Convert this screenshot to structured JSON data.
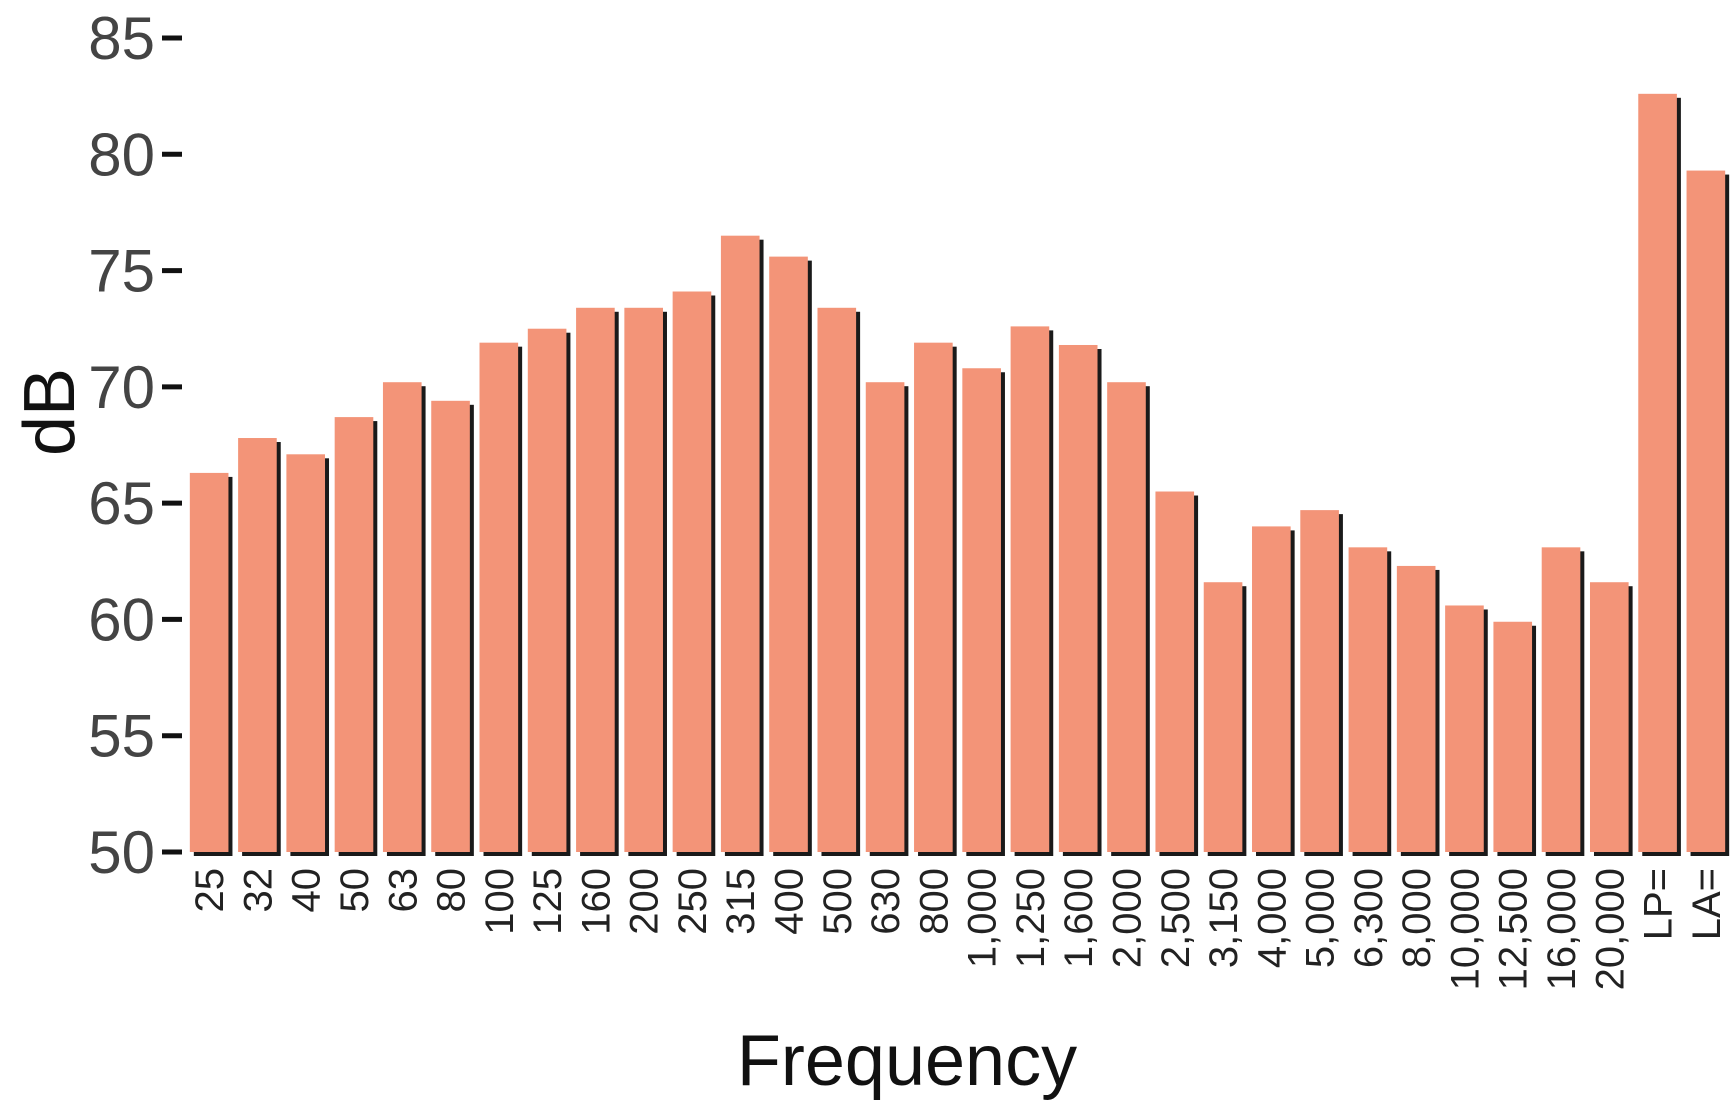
{
  "chart_data": {
    "type": "bar",
    "categories": [
      "25",
      "32",
      "40",
      "50",
      "63",
      "80",
      "100",
      "125",
      "160",
      "200",
      "250",
      "315",
      "400",
      "500",
      "630",
      "800",
      "1,000",
      "1,250",
      "1,600",
      "2,000",
      "2,500",
      "3,150",
      "4,000",
      "5,000",
      "6,300",
      "8,000",
      "10,000",
      "12,500",
      "16,000",
      "20,000",
      "LP=",
      "LA="
    ],
    "values": [
      66.3,
      67.8,
      67.1,
      68.7,
      70.2,
      69.4,
      71.9,
      72.5,
      73.4,
      73.4,
      74.1,
      76.5,
      75.6,
      73.4,
      70.2,
      71.9,
      70.8,
      72.6,
      71.8,
      70.2,
      65.5,
      61.6,
      64.0,
      64.7,
      63.1,
      62.3,
      60.6,
      59.9,
      63.1,
      61.6,
      82.6,
      79.3
    ],
    "xlabel": "Frequency",
    "ylabel": "dB",
    "ylim": [
      50,
      85
    ],
    "yticks": [
      "50",
      "55",
      "60",
      "65",
      "70",
      "75",
      "80",
      "85"
    ],
    "grid": false,
    "colors": {
      "bar": "#f39478",
      "shadow": "#1a1a1a",
      "axis": "#111111"
    }
  }
}
